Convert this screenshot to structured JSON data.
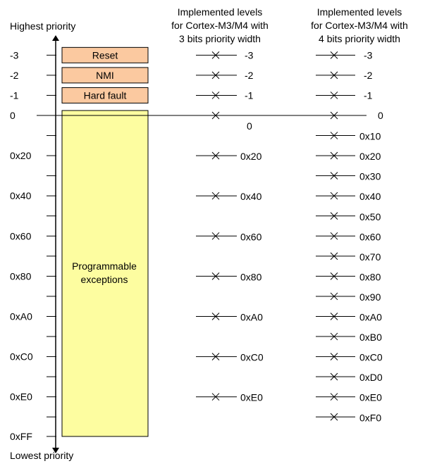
{
  "axis": {
    "top_label": "Highest priority",
    "bottom_label": "Lowest priority",
    "ticks": [
      "-3",
      "-2",
      "-1",
      "0",
      "",
      "0x20",
      "",
      "0x40",
      "",
      "0x60",
      "",
      "0x80",
      "",
      "0xA0",
      "",
      "0xC0",
      "",
      "0xE0",
      "",
      "0xFF"
    ]
  },
  "fixed_exceptions": [
    {
      "label": "Reset",
      "level": "-3"
    },
    {
      "label": "NMI",
      "level": "-2"
    },
    {
      "label": "Hard fault",
      "level": "-1"
    }
  ],
  "programmable": {
    "line1": "Programmable",
    "line2": "exceptions"
  },
  "columns": [
    {
      "header": [
        "Implemented levels",
        "for Cortex-M3/M4 with",
        "3 bits priority width"
      ],
      "levels": [
        "-3",
        "-2",
        "-1",
        "0",
        "0x20",
        "0x40",
        "0x60",
        "0x80",
        "0xA0",
        "0xC0",
        "0xE0"
      ]
    },
    {
      "header": [
        "Implemented levels",
        "for Cortex-M3/M4 with",
        "4 bits priority width"
      ],
      "levels": [
        "-3",
        "-2",
        "-1",
        "0",
        "0x10",
        "0x20",
        "0x30",
        "0x40",
        "0x50",
        "0x60",
        "0x70",
        "0x80",
        "0x90",
        "0xA0",
        "0xB0",
        "0xC0",
        "0xD0",
        "0xE0",
        "0xF0"
      ]
    }
  ],
  "colors": {
    "fixed_fill": "#fbc9a0",
    "programmable_fill": "#fdfda0",
    "border": "#000000"
  }
}
